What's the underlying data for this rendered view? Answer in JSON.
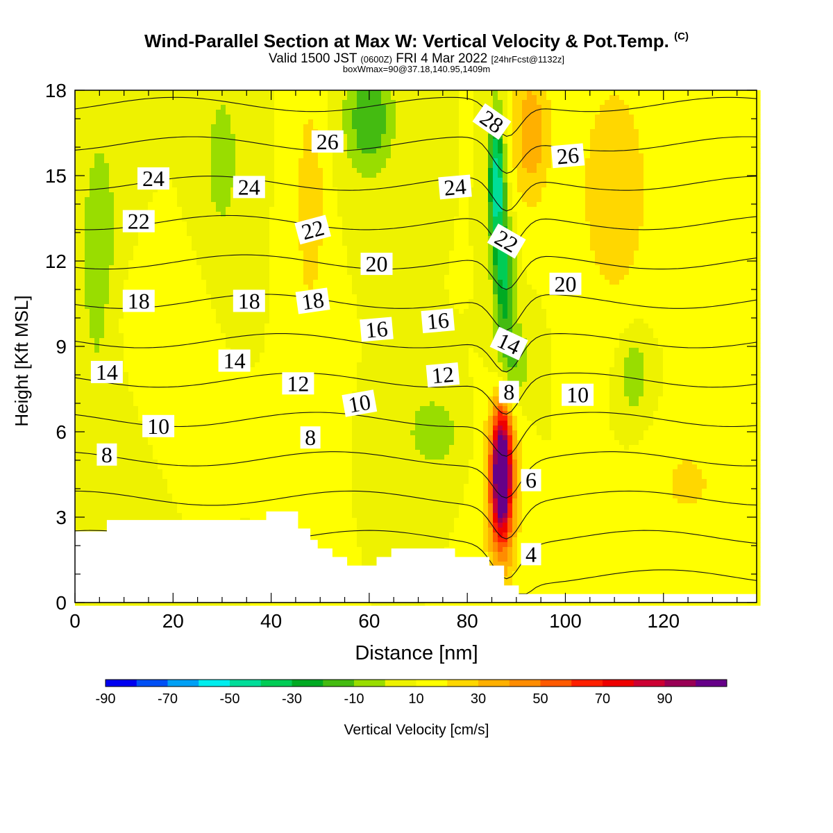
{
  "chart_data": {
    "type": "heatmap",
    "title": "Wind-Parallel Section at Max W: Vertical Velocity & Pot.Temp.",
    "title_mark": "(C)",
    "subtitle_parts": [
      "Valid 1500 JST",
      "(0600Z)",
      "FRI 4 Mar 2022",
      "[24hrFcst@1132z]"
    ],
    "subtitle2": "boxWmax=90@37.18,140.95,1409m",
    "xlabel": "Distance [nm]",
    "ylabel": "Height [Kft MSL]",
    "xlim": [
      0,
      139
    ],
    "ylim": [
      0,
      18
    ],
    "x_ticks": [
      "0",
      "20",
      "40",
      "60",
      "80",
      "100",
      "120"
    ],
    "y_ticks": [
      "0",
      "3",
      "6",
      "9",
      "12",
      "15",
      "18"
    ],
    "colorbar": {
      "label": "Vertical Velocity [cm/s]",
      "tick_labels": [
        "-90",
        "-70",
        "-50",
        "-30",
        "-10",
        "10",
        "30",
        "50",
        "70",
        "90"
      ],
      "bins": [
        -100,
        -90,
        -80,
        -70,
        -60,
        -50,
        -40,
        -30,
        -20,
        -10,
        0,
        10,
        20,
        30,
        40,
        50,
        60,
        70,
        80,
        90,
        100
      ],
      "colors": [
        "#0000f0",
        "#0050f5",
        "#00a0f5",
        "#00eeee",
        "#00dd99",
        "#00cc55",
        "#00aa22",
        "#44bb11",
        "#99dd00",
        "#eef200",
        "#ffff00",
        "#ffd700",
        "#ffb000",
        "#ff8c00",
        "#ff5a00",
        "#ff2000",
        "#ee0000",
        "#cc0033",
        "#990055",
        "#660088"
      ]
    },
    "background_w_cm_s": 0,
    "w_features": [
      {
        "x": 87,
        "z": 4.6,
        "w": 92,
        "wx": 1.8,
        "wz": 2.0
      },
      {
        "x": 87,
        "z": 4.0,
        "w": 45,
        "wx": 3.2,
        "wz": 3.2
      },
      {
        "x": 86,
        "z": 14.8,
        "w": -60,
        "wx": 1.6,
        "wz": 2.4
      },
      {
        "x": 87.5,
        "z": 11.5,
        "w": -40,
        "wx": 2.0,
        "wz": 2.0
      },
      {
        "x": 89,
        "z": 8.5,
        "w": -25,
        "wx": 3.5,
        "wz": 1.5
      },
      {
        "x": 93,
        "z": 16.5,
        "w": 28,
        "wx": 4.0,
        "wz": 2.5
      },
      {
        "x": 48,
        "z": 14.0,
        "w": 18,
        "wx": 3.0,
        "wz": 4.0
      },
      {
        "x": 60,
        "z": 17.0,
        "w": -30,
        "wx": 5.0,
        "wz": 2.0
      },
      {
        "x": 5,
        "z": 12.0,
        "w": -15,
        "wx": 5.0,
        "wz": 6.0
      },
      {
        "x": 30,
        "z": 15.5,
        "w": -15,
        "wx": 4.0,
        "wz": 3.0
      },
      {
        "x": 73,
        "z": 6.0,
        "w": -20,
        "wx": 5.0,
        "wz": 1.2
      },
      {
        "x": 114,
        "z": 8.0,
        "w": -18,
        "wx": 3.0,
        "wz": 1.5
      },
      {
        "x": 110,
        "z": 14.5,
        "w": 20,
        "wx": 7.0,
        "wz": 4.0
      },
      {
        "x": 125,
        "z": 4.2,
        "w": 12,
        "wx": 8.0,
        "wz": 1.8
      },
      {
        "x": 15,
        "z": 10.0,
        "w": 10,
        "wx": 8.0,
        "wz": 2.0
      }
    ],
    "terrain": [
      [
        0,
        2.5
      ],
      [
        6.5,
        2.5
      ],
      [
        6.5,
        2.9
      ],
      [
        39,
        2.9
      ],
      [
        39,
        3.2
      ],
      [
        45.5,
        3.2
      ],
      [
        45.5,
        2.6
      ],
      [
        48,
        2.6
      ],
      [
        48,
        2.2
      ],
      [
        49.5,
        2.2
      ],
      [
        49.5,
        1.9
      ],
      [
        52.5,
        1.9
      ],
      [
        52.5,
        1.6
      ],
      [
        55.5,
        1.6
      ],
      [
        55.5,
        1.3
      ],
      [
        61.5,
        1.3
      ],
      [
        61.5,
        1.6
      ],
      [
        64.5,
        1.6
      ],
      [
        64.5,
        1.9
      ],
      [
        77.5,
        1.9
      ],
      [
        77.5,
        1.6
      ],
      [
        84.5,
        1.6
      ],
      [
        84.5,
        1.3
      ],
      [
        87.5,
        1.3
      ],
      [
        87.5,
        0.6
      ],
      [
        90.5,
        0.6
      ],
      [
        90.5,
        0.3
      ],
      [
        139,
        0.3
      ]
    ],
    "theta_contours": [
      4,
      6,
      8,
      10,
      12,
      14,
      16,
      18,
      20,
      22,
      24,
      26,
      28
    ],
    "contour_labels": [
      {
        "text": "28",
        "x": 85,
        "z": 16.9,
        "rot": 35
      },
      {
        "text": "26",
        "x": 51.5,
        "z": 16.2,
        "rot": 0
      },
      {
        "text": "26",
        "x": 100.5,
        "z": 15.7,
        "rot": -5
      },
      {
        "text": "24",
        "x": 16,
        "z": 14.9,
        "rot": 0
      },
      {
        "text": "24",
        "x": 35.5,
        "z": 14.6,
        "rot": 0
      },
      {
        "text": "24",
        "x": 77.5,
        "z": 14.6,
        "rot": -5
      },
      {
        "text": "22",
        "x": 13,
        "z": 13.4,
        "rot": 0
      },
      {
        "text": "22",
        "x": 48.5,
        "z": 13.1,
        "rot": -15
      },
      {
        "text": "22",
        "x": 88,
        "z": 12.7,
        "rot": 30
      },
      {
        "text": "20",
        "x": 61.5,
        "z": 11.9,
        "rot": 0
      },
      {
        "text": "20",
        "x": 100,
        "z": 11.2,
        "rot": 0
      },
      {
        "text": "18",
        "x": 13,
        "z": 10.6,
        "rot": 0
      },
      {
        "text": "18",
        "x": 35.5,
        "z": 10.6,
        "rot": 0
      },
      {
        "text": "18",
        "x": 48.5,
        "z": 10.6,
        "rot": -8
      },
      {
        "text": "16",
        "x": 61.5,
        "z": 9.6,
        "rot": -5
      },
      {
        "text": "16",
        "x": 74,
        "z": 9.9,
        "rot": -5
      },
      {
        "text": "14",
        "x": 6.5,
        "z": 8.1,
        "rot": 0
      },
      {
        "text": "14",
        "x": 32.5,
        "z": 8.5,
        "rot": 0
      },
      {
        "text": "14",
        "x": 88.5,
        "z": 9.1,
        "rot": 25
      },
      {
        "text": "12",
        "x": 45.5,
        "z": 7.7,
        "rot": 0
      },
      {
        "text": "12",
        "x": 75,
        "z": 8.0,
        "rot": -5
      },
      {
        "text": "10",
        "x": 17,
        "z": 6.2,
        "rot": 0
      },
      {
        "text": "10",
        "x": 58,
        "z": 7.0,
        "rot": -10
      },
      {
        "text": "10",
        "x": 102.5,
        "z": 7.3,
        "rot": 0
      },
      {
        "text": "8",
        "x": 6.5,
        "z": 5.2,
        "rot": 0
      },
      {
        "text": "8",
        "x": 48,
        "z": 5.8,
        "rot": 0
      },
      {
        "text": "8",
        "x": 88.5,
        "z": 7.4,
        "rot": 0
      },
      {
        "text": "6",
        "x": 93,
        "z": 4.3,
        "rot": 0
      },
      {
        "text": "4",
        "x": 93,
        "z": 1.7,
        "rot": 0
      }
    ]
  }
}
